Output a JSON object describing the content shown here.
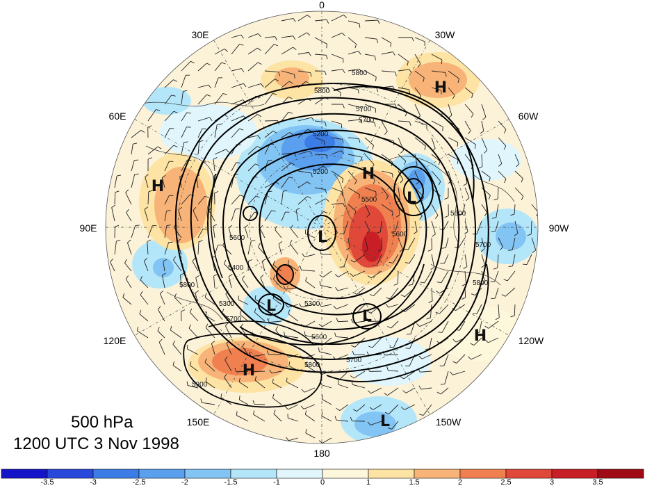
{
  "map": {
    "level": "500 hPa",
    "valid_time": "1200 UTC 3 Nov 1998",
    "longitude_labels": [
      "0",
      "30W",
      "60W",
      "90W",
      "120W",
      "150W",
      "180",
      "150E",
      "120E",
      "90E",
      "60E",
      "30E"
    ],
    "contour_labels": [
      "5800",
      "5800",
      "5700",
      "5700",
      "5600",
      "5600",
      "5500",
      "5400",
      "5300",
      "5300",
      "5200",
      "5200",
      "5600",
      "5700",
      "5800",
      "5800",
      "5700",
      "5900",
      "5800",
      "5700",
      "5600"
    ],
    "pressure_systems": [
      {
        "label": "H"
      },
      {
        "label": "H"
      },
      {
        "label": "H"
      },
      {
        "label": "H"
      },
      {
        "label": "H"
      },
      {
        "label": "L"
      },
      {
        "label": "L"
      },
      {
        "label": "L"
      },
      {
        "label": "L"
      },
      {
        "label": "L"
      }
    ]
  },
  "colorbar": {
    "colors": [
      "#1414c8",
      "#2848dc",
      "#3c7ce6",
      "#5aa0ee",
      "#82c4f4",
      "#b4e6fa",
      "#e0f6fc",
      "#fdf8dc",
      "#fde3a4",
      "#f8b478",
      "#f08050",
      "#e0483a",
      "#c81e26",
      "#a00a14"
    ],
    "tick_labels": [
      "-3.5",
      "-3",
      "-2.5",
      "-2",
      "-1.5",
      "-1",
      "0",
      "1",
      "1.5",
      "2",
      "2.5",
      "3",
      "3.5"
    ]
  }
}
